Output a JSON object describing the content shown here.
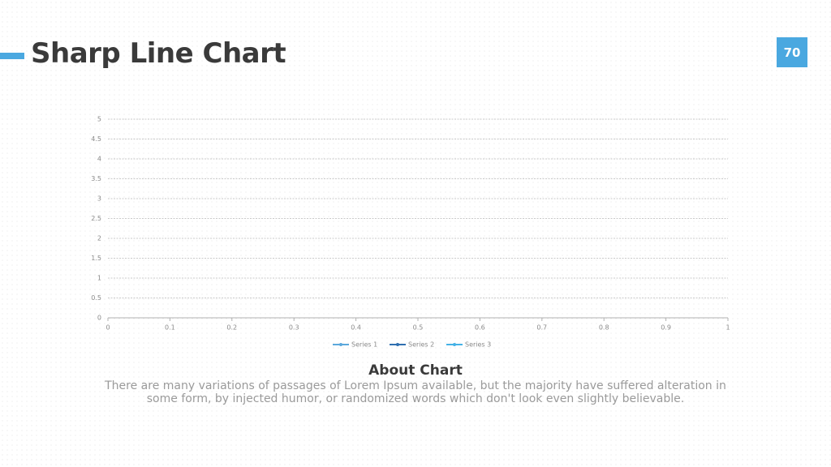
{
  "slide_title": "Sharp Line Chart",
  "page_number": "70",
  "chart_data": {
    "type": "line",
    "x": [],
    "series": [
      {
        "name": "Series 1",
        "color": "#5ba8dc",
        "values": []
      },
      {
        "name": "Series 2",
        "color": "#2f6fb0",
        "values": []
      },
      {
        "name": "Series 3",
        "color": "#44b2e6",
        "values": []
      }
    ],
    "xlim": [
      0,
      1
    ],
    "xticks": [
      0,
      0.1,
      0.2,
      0.3,
      0.4,
      0.5,
      0.6,
      0.7,
      0.8,
      0.9,
      1
    ],
    "ylim": [
      0,
      5
    ],
    "yticks": [
      0,
      0.5,
      1,
      1.5,
      2,
      2.5,
      3,
      3.5,
      4,
      4.5,
      5
    ],
    "grid": true,
    "legend": "bottom"
  },
  "caption": {
    "heading": "About Chart",
    "body": "There are many variations of passages of Lorem Ipsum available, but the majority have suffered alteration in some form, by injected humor, or randomized words which don't look even slightly believable."
  }
}
